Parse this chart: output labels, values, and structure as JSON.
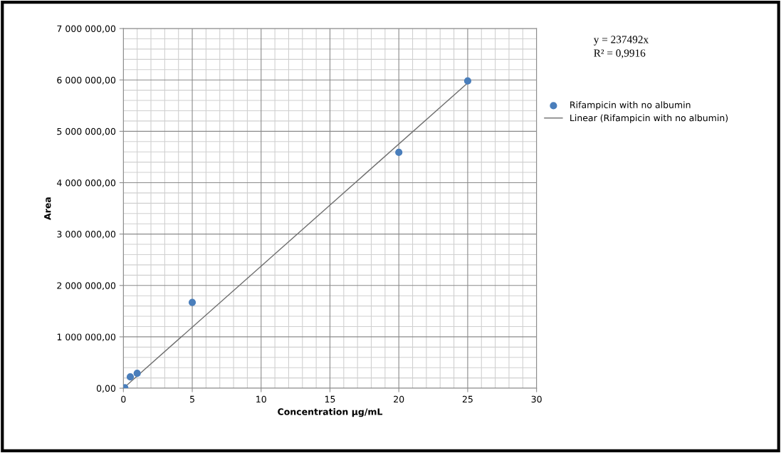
{
  "chart_data": {
    "type": "scatter",
    "xlabel": "Concentration µg/mL",
    "ylabel": "Area",
    "annotations": [
      "y = 237492x",
      "R² = 0,9916"
    ],
    "series": [
      {
        "name": "Rifampicin with no albumin",
        "color": "#4a7ebb",
        "marker": "circle",
        "x": [
          0.1,
          0.5,
          1,
          5,
          20,
          25
        ],
        "values": [
          10000,
          220000,
          290000,
          1670000,
          4590000,
          5980000
        ]
      },
      {
        "name": "Linear (Rifampicin with no albumin)",
        "type": "line",
        "color": "#6e6e6e",
        "line_style": "solid",
        "x": [
          0,
          25
        ],
        "values": [
          0,
          5940000
        ]
      }
    ],
    "xlim": [
      0,
      30
    ],
    "xticks": [
      0,
      5,
      10,
      15,
      20,
      25,
      30
    ],
    "ylim": [
      0,
      7000000
    ],
    "yticks": [
      {
        "value": 0,
        "label": "0,00"
      },
      {
        "value": 1000000,
        "label": "1 000 000,00"
      },
      {
        "value": 2000000,
        "label": "2 000 000,00"
      },
      {
        "value": 3000000,
        "label": "3 000 000,00"
      },
      {
        "value": 4000000,
        "label": "4 000 000,00"
      },
      {
        "value": 5000000,
        "label": "5 000 000,00"
      },
      {
        "value": 6000000,
        "label": "6 000 000,00"
      },
      {
        "value": 7000000,
        "label": "7 000 000,00"
      }
    ],
    "grid": true,
    "legend": "right"
  }
}
